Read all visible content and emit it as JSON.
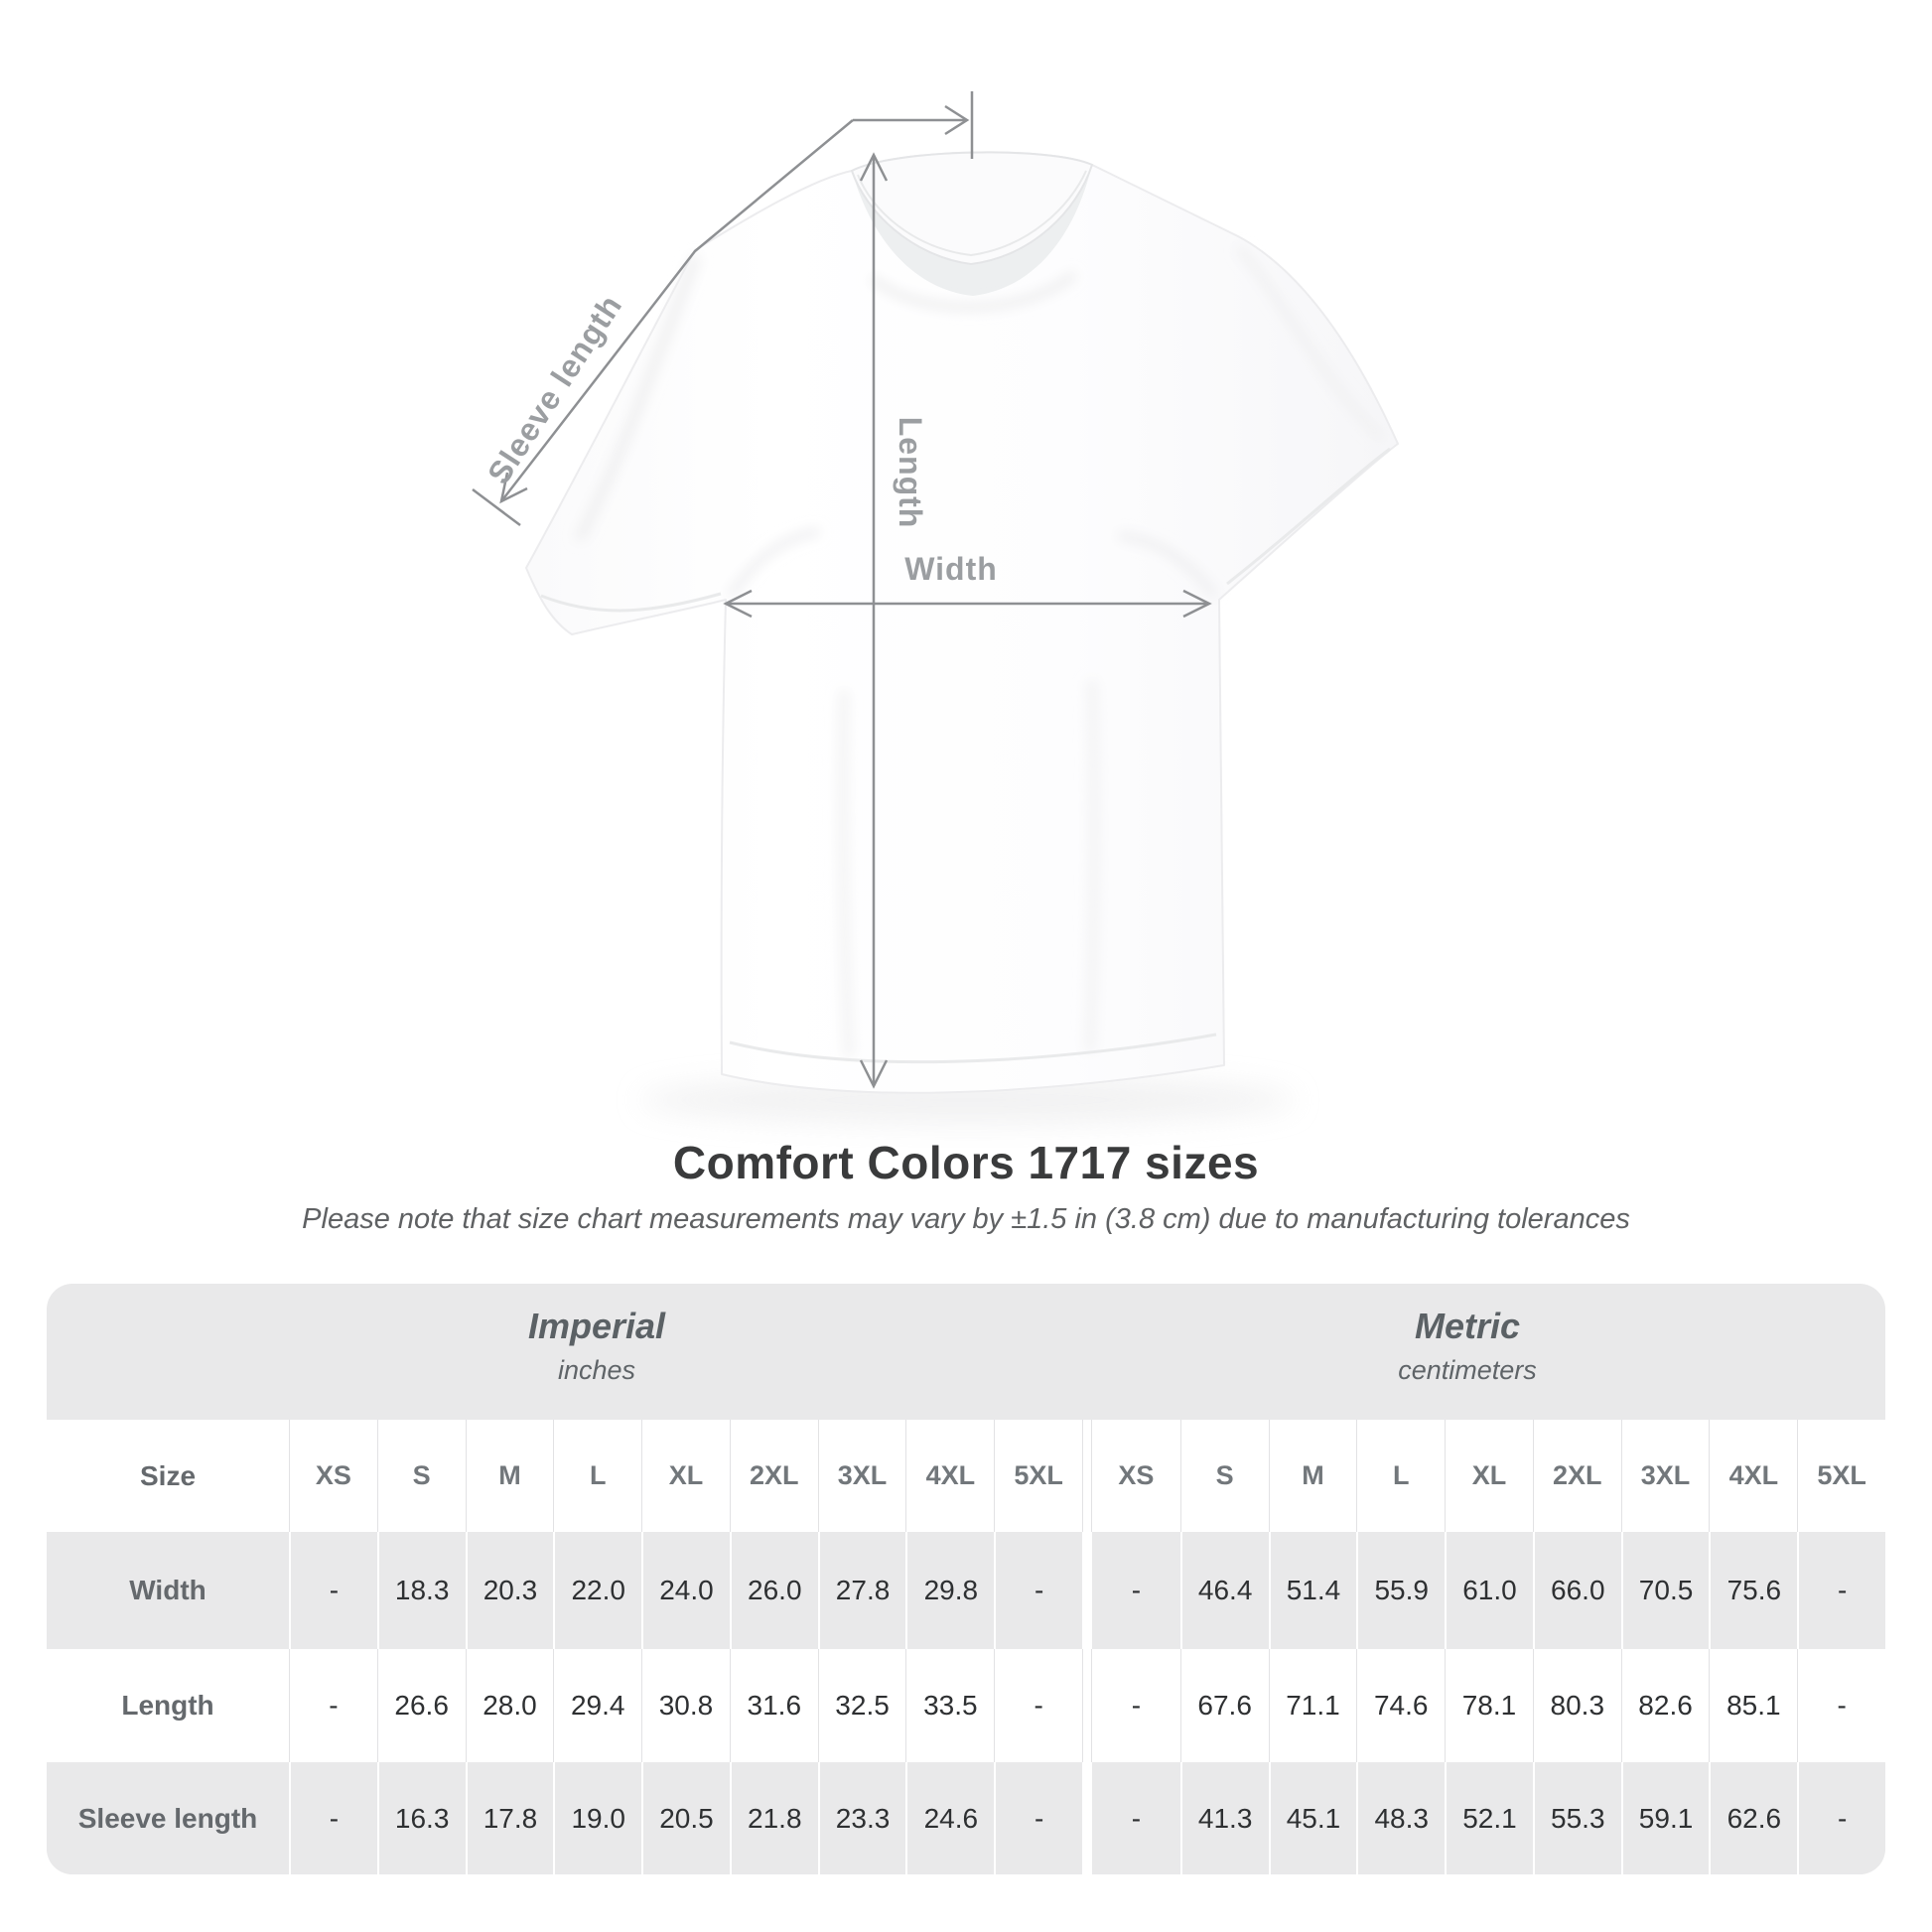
{
  "shirt_diagram": {
    "labels": {
      "sleeve": "Sleeve length",
      "length": "Length",
      "width": "Width"
    },
    "arrow_color": "#8e9093",
    "label_color": "#9b9ea1"
  },
  "heading": {
    "title": "Comfort Colors 1717 sizes",
    "subtitle": "Please note that size chart measurements may vary by ±1.5 in (3.8 cm) due to manufacturing tolerances"
  },
  "size_table": {
    "corner_label": "Size",
    "groups": [
      {
        "title": "Imperial",
        "unit": "inches"
      },
      {
        "title": "Metric",
        "unit": "centimeters"
      }
    ],
    "sizes": [
      "XS",
      "S",
      "M",
      "L",
      "XL",
      "2XL",
      "3XL",
      "4XL",
      "5XL"
    ],
    "rows": [
      {
        "label": "Width",
        "imperial": [
          "-",
          "18.3",
          "20.3",
          "22.0",
          "24.0",
          "26.0",
          "27.8",
          "29.8",
          "-"
        ],
        "metric": [
          "-",
          "46.4",
          "51.4",
          "55.9",
          "61.0",
          "66.0",
          "70.5",
          "75.6",
          "-"
        ]
      },
      {
        "label": "Length",
        "imperial": [
          "-",
          "26.6",
          "28.0",
          "29.4",
          "30.8",
          "31.6",
          "32.5",
          "33.5",
          "-"
        ],
        "metric": [
          "-",
          "67.6",
          "71.1",
          "74.6",
          "78.1",
          "80.3",
          "82.6",
          "85.1",
          "-"
        ]
      },
      {
        "label": "Sleeve length",
        "imperial": [
          "-",
          "16.3",
          "17.8",
          "19.0",
          "20.5",
          "21.8",
          "23.3",
          "24.6",
          "-"
        ],
        "metric": [
          "-",
          "41.3",
          "45.1",
          "48.3",
          "52.1",
          "55.3",
          "59.1",
          "62.6",
          "-"
        ]
      }
    ],
    "colors": {
      "card_bg": "#e9e9ea",
      "alt_row": "#ffffff"
    }
  }
}
